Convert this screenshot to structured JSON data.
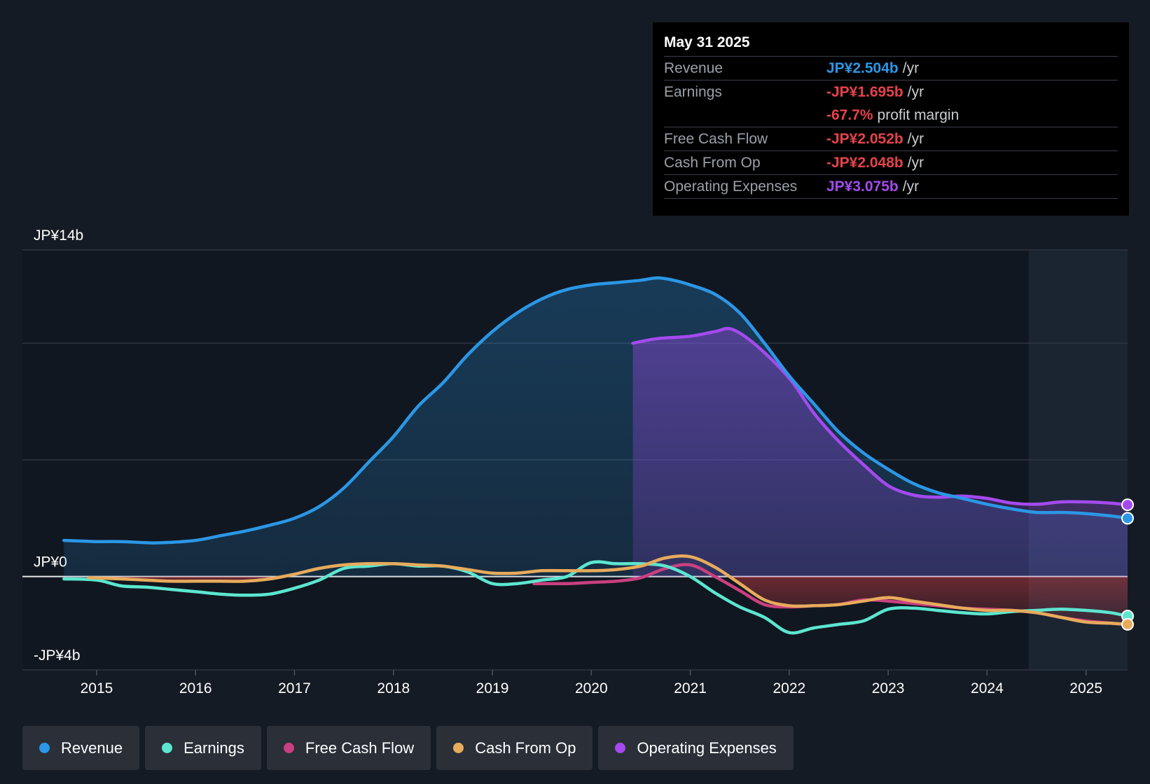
{
  "colors": {
    "revenue": "#2b97e6",
    "earnings": "#5ce6d0",
    "fcf": "#c94080",
    "cfo": "#e7ab5c",
    "opex": "#a44aee",
    "negative": "#e5434a"
  },
  "tooltip": {
    "date": "May 31 2025",
    "rows": [
      {
        "label": "Revenue",
        "value": "JP¥2.504b",
        "unit": "/yr"
      },
      {
        "label": "Earnings",
        "value": "-JP¥1.695b",
        "unit": "/yr"
      },
      {
        "label": "",
        "value": "-67.7%",
        "unit": "profit margin"
      },
      {
        "label": "Free Cash Flow",
        "value": "-JP¥2.052b",
        "unit": "/yr"
      },
      {
        "label": "Cash From Op",
        "value": "-JP¥2.048b",
        "unit": "/yr"
      },
      {
        "label": "Operating Expenses",
        "value": "JP¥3.075b",
        "unit": "/yr"
      }
    ]
  },
  "legend": [
    {
      "key": "revenue",
      "label": "Revenue"
    },
    {
      "key": "earnings",
      "label": "Earnings"
    },
    {
      "key": "fcf",
      "label": "Free Cash Flow"
    },
    {
      "key": "cfo",
      "label": "Cash From Op"
    },
    {
      "key": "opex",
      "label": "Operating Expenses"
    }
  ],
  "chart_data": {
    "type": "area",
    "ylim": [
      -4,
      14
    ],
    "xlim": [
      2014.25,
      2025.42
    ],
    "y_tick_labels": [
      {
        "value": 14,
        "label": "JP¥14b"
      },
      {
        "value": 0,
        "label": "JP¥0"
      },
      {
        "value": -4,
        "label": "-JP¥4b"
      }
    ],
    "gridlines": [
      14,
      10,
      5,
      0,
      -4
    ],
    "x_ticks": [
      2015,
      2016,
      2017,
      2018,
      2019,
      2020,
      2021,
      2022,
      2023,
      2024,
      2025
    ],
    "forecast_start": 2024.42,
    "series": [
      {
        "name": "Revenue",
        "key": "revenue",
        "fill": true,
        "x": [
          2014.67,
          2015.0,
          2015.25,
          2015.5,
          2015.67,
          2016.0,
          2016.25,
          2016.5,
          2016.75,
          2017.0,
          2017.25,
          2017.5,
          2017.75,
          2018.0,
          2018.25,
          2018.5,
          2018.75,
          2019.0,
          2019.25,
          2019.5,
          2019.75,
          2020.0,
          2020.25,
          2020.5,
          2020.67,
          2020.83,
          2021.0,
          2021.25,
          2021.5,
          2021.75,
          2022.0,
          2022.25,
          2022.5,
          2022.75,
          2023.0,
          2023.25,
          2023.5,
          2023.75,
          2024.0,
          2024.25,
          2024.5,
          2024.75,
          2025.0,
          2025.25,
          2025.42
        ],
        "y": [
          1.55,
          1.5,
          1.5,
          1.45,
          1.45,
          1.55,
          1.75,
          1.95,
          2.2,
          2.5,
          3.0,
          3.8,
          4.9,
          6.0,
          7.3,
          8.3,
          9.5,
          10.5,
          11.3,
          11.9,
          12.3,
          12.5,
          12.6,
          12.7,
          12.8,
          12.7,
          12.5,
          12.1,
          11.3,
          10.0,
          8.6,
          7.4,
          6.2,
          5.3,
          4.6,
          4.0,
          3.6,
          3.35,
          3.1,
          2.9,
          2.75,
          2.75,
          2.7,
          2.6,
          2.5
        ]
      },
      {
        "name": "Operating Expenses",
        "key": "opex",
        "fill": true,
        "x": [
          2020.42,
          2020.67,
          2021.0,
          2021.25,
          2021.42,
          2021.67,
          2022.0,
          2022.25,
          2022.5,
          2022.75,
          2023.0,
          2023.25,
          2023.5,
          2023.75,
          2024.0,
          2024.25,
          2024.5,
          2024.75,
          2025.0,
          2025.25,
          2025.42
        ],
        "y": [
          10.0,
          10.2,
          10.3,
          10.5,
          10.6,
          9.9,
          8.5,
          7.0,
          5.8,
          4.8,
          3.9,
          3.5,
          3.4,
          3.45,
          3.35,
          3.15,
          3.1,
          3.2,
          3.2,
          3.15,
          3.075
        ]
      },
      {
        "name": "Earnings",
        "key": "earnings",
        "fill": false,
        "x": [
          2014.67,
          2015.0,
          2015.25,
          2015.5,
          2015.75,
          2016.0,
          2016.25,
          2016.5,
          2016.75,
          2017.0,
          2017.25,
          2017.5,
          2017.75,
          2018.0,
          2018.25,
          2018.5,
          2018.75,
          2019.0,
          2019.25,
          2019.5,
          2019.75,
          2020.0,
          2020.25,
          2020.5,
          2020.75,
          2021.0,
          2021.25,
          2021.5,
          2021.75,
          2022.0,
          2022.25,
          2022.5,
          2022.75,
          2023.0,
          2023.25,
          2023.5,
          2023.75,
          2024.0,
          2024.25,
          2024.5,
          2024.75,
          2025.0,
          2025.25,
          2025.42
        ],
        "y": [
          -0.1,
          -0.15,
          -0.4,
          -0.45,
          -0.55,
          -0.65,
          -0.75,
          -0.8,
          -0.75,
          -0.5,
          -0.15,
          0.35,
          0.45,
          0.55,
          0.45,
          0.45,
          0.2,
          -0.3,
          -0.3,
          -0.15,
          0.0,
          0.6,
          0.55,
          0.55,
          0.45,
          0.0,
          -0.7,
          -1.3,
          -1.75,
          -2.4,
          -2.2,
          -2.05,
          -1.9,
          -1.4,
          -1.35,
          -1.45,
          -1.55,
          -1.6,
          -1.5,
          -1.45,
          -1.4,
          -1.45,
          -1.55,
          -1.695
        ]
      },
      {
        "name": "Free Cash Flow",
        "key": "fcf",
        "fill": false,
        "x": [
          2019.42,
          2019.75,
          2020.0,
          2020.25,
          2020.5,
          2020.75,
          2021.0,
          2021.25,
          2021.5,
          2021.75,
          2022.0,
          2022.25,
          2022.5,
          2022.75,
          2023.0,
          2023.25,
          2023.5,
          2023.75,
          2024.0,
          2024.25,
          2024.5,
          2024.75,
          2025.0,
          2025.25,
          2025.42
        ],
        "y": [
          -0.3,
          -0.3,
          -0.25,
          -0.2,
          -0.05,
          0.35,
          0.5,
          0.0,
          -0.6,
          -1.2,
          -1.3,
          -1.25,
          -1.2,
          -1.0,
          -1.05,
          -1.15,
          -1.25,
          -1.35,
          -1.4,
          -1.45,
          -1.55,
          -1.75,
          -1.9,
          -2.0,
          -2.052
        ]
      },
      {
        "name": "Cash From Op",
        "key": "cfo",
        "fill": false,
        "x": [
          2014.92,
          2015.25,
          2015.5,
          2015.75,
          2016.0,
          2016.25,
          2016.5,
          2016.75,
          2017.0,
          2017.25,
          2017.5,
          2017.75,
          2018.0,
          2018.25,
          2018.5,
          2018.75,
          2019.0,
          2019.25,
          2019.5,
          2019.75,
          2020.0,
          2020.25,
          2020.5,
          2020.75,
          2021.0,
          2021.25,
          2021.5,
          2021.75,
          2022.0,
          2022.25,
          2022.5,
          2022.75,
          2023.0,
          2023.25,
          2023.5,
          2023.75,
          2024.0,
          2024.25,
          2024.5,
          2024.75,
          2025.0,
          2025.25,
          2025.42
        ],
        "y": [
          -0.05,
          -0.1,
          -0.15,
          -0.2,
          -0.2,
          -0.2,
          -0.2,
          -0.1,
          0.1,
          0.35,
          0.5,
          0.55,
          0.55,
          0.5,
          0.45,
          0.3,
          0.15,
          0.15,
          0.25,
          0.25,
          0.25,
          0.3,
          0.45,
          0.8,
          0.85,
          0.4,
          -0.3,
          -1.0,
          -1.25,
          -1.25,
          -1.2,
          -1.05,
          -0.9,
          -1.05,
          -1.2,
          -1.35,
          -1.45,
          -1.45,
          -1.55,
          -1.75,
          -1.95,
          -2.0,
          -2.048
        ]
      }
    ]
  }
}
